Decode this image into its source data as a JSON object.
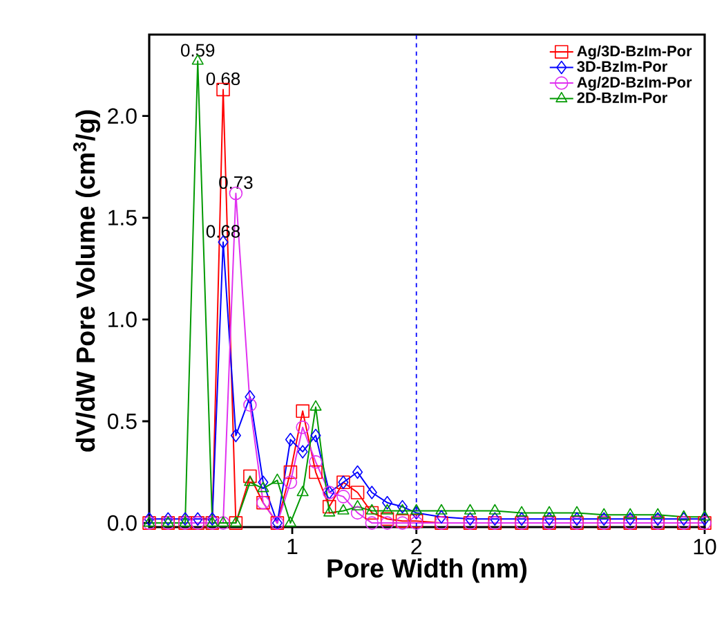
{
  "chart_data": {
    "type": "line",
    "xlabel": "Pore Width (nm)",
    "ylabel": "dV/dW Pore Volume (cm$^{3}$/g)",
    "x": [
      0.45,
      0.5,
      0.55,
      0.59,
      0.64,
      0.68,
      0.73,
      0.79,
      0.85,
      0.92,
      0.99,
      1.06,
      1.14,
      1.23,
      1.33,
      1.44,
      1.56,
      1.7,
      1.85,
      2.0,
      2.3,
      2.7,
      3.1,
      3.6,
      4.2,
      4.9,
      5.7,
      6.6,
      7.7,
      8.9,
      10.0
    ],
    "series": [
      {
        "name": "Ag/3D-BzIm-Por",
        "color": "#ff0000",
        "marker": "square",
        "values": [
          0,
          0,
          0,
          0,
          0,
          2.13,
          0,
          0.23,
          0.1,
          0,
          0.25,
          0.55,
          0.25,
          0.08,
          0.2,
          0.15,
          0.05,
          0.02,
          0.01,
          0.01,
          0,
          0,
          0,
          0,
          0,
          0,
          0,
          0,
          0,
          0,
          0
        ]
      },
      {
        "name": "3D-BzIm-Por",
        "color": "#0000ff",
        "marker": "diamond",
        "values": [
          0.02,
          0.02,
          0.02,
          0.02,
          0.02,
          1.38,
          0.43,
          0.62,
          0.2,
          0,
          0.41,
          0.35,
          0.43,
          0.15,
          0.2,
          0.25,
          0.15,
          0.1,
          0.08,
          0.05,
          0.03,
          0.02,
          0.02,
          0.02,
          0.02,
          0.02,
          0.02,
          0.02,
          0.02,
          0.02,
          0.02
        ]
      },
      {
        "name": "Ag/2D-BzIm-Por",
        "color": "#e030f0",
        "marker": "circle",
        "values": [
          0,
          0,
          0,
          0,
          0,
          0,
          1.62,
          0.58,
          0.1,
          0,
          0.2,
          0.47,
          0.3,
          0.15,
          0.13,
          0.05,
          0,
          0,
          0,
          0,
          0,
          0,
          0,
          0,
          0,
          0,
          0,
          0,
          0,
          0,
          0
        ]
      },
      {
        "name": "2D-BzIm-Por",
        "color": "#009900",
        "marker": "triangle",
        "values": [
          0,
          0,
          0,
          2.27,
          0,
          0,
          0,
          0.2,
          0.17,
          0.21,
          0,
          0.15,
          0.57,
          0.05,
          0.06,
          0.08,
          0.06,
          0.06,
          0.06,
          0.06,
          0.06,
          0.06,
          0.06,
          0.05,
          0.05,
          0.05,
          0.04,
          0.04,
          0.04,
          0.03,
          0.03
        ]
      }
    ],
    "log": "x",
    "xlim": [
      0.45,
      10
    ],
    "xticks": [
      1,
      2,
      10
    ],
    "ylim": [
      -0.02,
      2.4
    ],
    "yticks": [
      {
        "value": 0,
        "label": "0.0"
      },
      {
        "value": 0.5,
        "label": "0.5"
      },
      {
        "value": 1,
        "label": "1.0"
      },
      {
        "value": 1.5,
        "label": "1.5"
      },
      {
        "value": 2,
        "label": "2.0"
      }
    ],
    "ref_lines": [
      {
        "axis": "x",
        "value": 2,
        "color": "#0000ff",
        "line_style": "dashed"
      }
    ],
    "annotations": [
      {
        "text": "0.59",
        "x": 0.59,
        "y": 2.27
      },
      {
        "text": "0.68",
        "x": 0.68,
        "y": 2.13
      },
      {
        "text": "0.73",
        "x": 0.73,
        "y": 1.62
      },
      {
        "text": "0.68",
        "x": 0.68,
        "y": 1.38
      }
    ],
    "legend": "top right",
    "line_style": "solid"
  }
}
